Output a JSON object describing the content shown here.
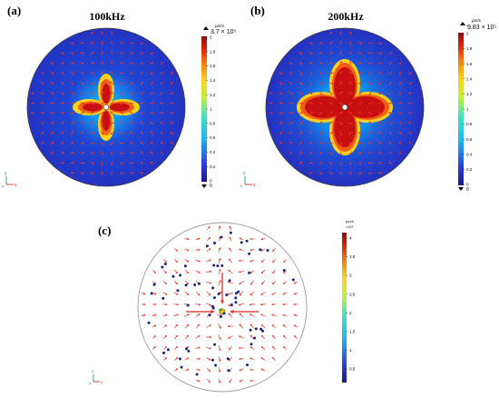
{
  "panels": [
    {
      "label": "(a)",
      "title": "100kHz",
      "colorbar": {
        "unit": "µm/s",
        "max_label": "3.7 × 10⁵",
        "ticks": [
          "2",
          "1.8",
          "1.6",
          "1.4",
          "1.2",
          "1",
          "0.8",
          "0.6",
          "0.4",
          "0.2",
          "0"
        ],
        "min_label": "0"
      }
    },
    {
      "label": "(b)",
      "title": "200kHz",
      "colorbar": {
        "unit": "µm/s",
        "max_label": "9.83 × 10⁵",
        "ticks": [
          "2",
          "1.8",
          "1.6",
          "1.4",
          "1.2",
          "1",
          "0.8",
          "0.6",
          "0.4",
          "0.2",
          "0"
        ],
        "min_label": "0"
      }
    },
    {
      "label": "(c)",
      "title": "",
      "colorbar": {
        "unit": "µm/s",
        "exponent": "×10⁴",
        "ticks": [
          "4",
          "3.5",
          "3",
          "2.5",
          "2",
          "1.5",
          "1",
          "0.5"
        ]
      }
    }
  ],
  "axis_triad": {
    "x": "x",
    "y": "y",
    "z": "z"
  },
  "colors": {
    "field_low": "#1f2fc8",
    "field_mid": "#00c8ff",
    "field_hot": "#d91e0e",
    "arrow": "#e8332a",
    "particle": "#1a237e"
  }
}
